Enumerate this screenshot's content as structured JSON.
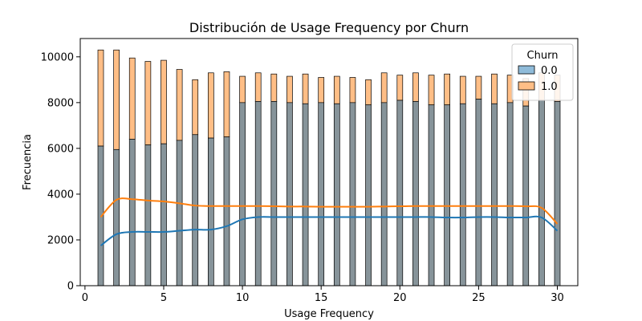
{
  "chart_data": {
    "type": "bar",
    "title": "Distribución de Usage Frequency por Churn",
    "xlabel": "Usage Frequency",
    "ylabel": "Frecuencia",
    "xlim": [
      -0.3,
      31.3
    ],
    "ylim": [
      0,
      10800
    ],
    "xticks": [
      0,
      5,
      10,
      15,
      20,
      25,
      30
    ],
    "yticks": [
      0,
      2000,
      4000,
      6000,
      8000,
      10000
    ],
    "x": [
      1,
      2,
      3,
      4,
      5,
      6,
      7,
      8,
      9,
      10,
      11,
      12,
      13,
      14,
      15,
      16,
      17,
      18,
      19,
      20,
      21,
      22,
      23,
      24,
      25,
      26,
      27,
      28,
      29,
      30
    ],
    "stacked": true,
    "legend": {
      "title": "Churn",
      "position": "top-right"
    },
    "series": [
      {
        "name": "0.0",
        "color": "#1f77b4",
        "values": [
          6100,
          5950,
          6400,
          6150,
          6200,
          6350,
          6600,
          6450,
          6500,
          8000,
          8050,
          8050,
          8000,
          7950,
          8000,
          7950,
          8000,
          7900,
          8000,
          8100,
          8050,
          7900,
          7900,
          7950,
          8150,
          7950,
          8000,
          7850,
          8100,
          8050
        ],
        "kde": [
          1750,
          2250,
          2350,
          2350,
          2350,
          2400,
          2450,
          2450,
          2600,
          2900,
          3000,
          3000,
          3000,
          3000,
          3000,
          3000,
          3000,
          3000,
          3000,
          3000,
          3000,
          3000,
          2980,
          2980,
          3000,
          3000,
          2980,
          2980,
          2980,
          2400
        ]
      },
      {
        "name": "1.0",
        "color": "#ff7f0e",
        "values": [
          4200,
          4350,
          3550,
          3650,
          3650,
          3100,
          2400,
          2850,
          2850,
          1150,
          1250,
          1200,
          1150,
          1300,
          1100,
          1200,
          1100,
          1100,
          1300,
          1100,
          1250,
          1300,
          1350,
          1200,
          1000,
          1300,
          1200,
          1200,
          1200,
          1150
        ],
        "kde": [
          3000,
          3750,
          3780,
          3720,
          3680,
          3600,
          3500,
          3480,
          3480,
          3480,
          3480,
          3470,
          3460,
          3460,
          3450,
          3450,
          3450,
          3450,
          3460,
          3470,
          3480,
          3480,
          3480,
          3480,
          3480,
          3480,
          3480,
          3470,
          3400,
          2700
        ]
      }
    ]
  }
}
